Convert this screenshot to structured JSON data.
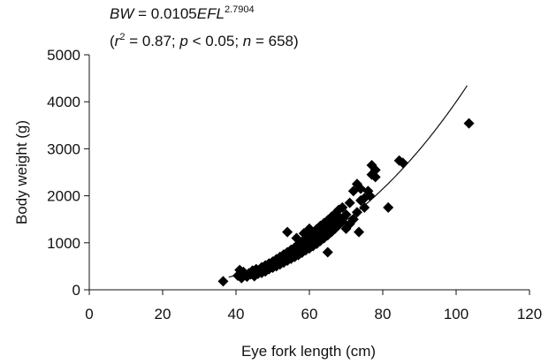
{
  "chart_data": {
    "type": "scatter",
    "xlabel": "Eye fork length (cm)",
    "ylabel": "Body weight (g)",
    "xlim": [
      0,
      120
    ],
    "ylim": [
      0,
      5000
    ],
    "xticks": [
      0,
      20,
      40,
      60,
      80,
      100,
      120
    ],
    "yticks": [
      0,
      1000,
      2000,
      3000,
      4000,
      5000
    ],
    "grid": false,
    "legend": "none",
    "annotation": {
      "equation": {
        "lhs_var": "BW",
        "equals": " = 0.0105",
        "rhs_var": "EFL",
        "exponent": "2.7904"
      },
      "stats": {
        "open": "(",
        "r_var": "r",
        "r_exp": "2",
        "r_val": " = 0.87; ",
        "p_var": "p",
        "p_val": " < 0.05; ",
        "n_var": "n",
        "n_val": " = 658)"
      }
    },
    "fit": {
      "a": 0.0105,
      "b": 2.7904,
      "x_range": [
        38,
        103
      ]
    },
    "series": [
      {
        "marker": "diamond",
        "color": "#000000",
        "points": [
          [
            36.5,
            180
          ],
          [
            40.5,
            300
          ],
          [
            41,
            420
          ],
          [
            41.5,
            250
          ],
          [
            42,
            380
          ],
          [
            42.5,
            310
          ],
          [
            43,
            280
          ],
          [
            43.5,
            350
          ],
          [
            44,
            330
          ],
          [
            44.5,
            410
          ],
          [
            45,
            290
          ],
          [
            45,
            370
          ],
          [
            45.5,
            440
          ],
          [
            46,
            340
          ],
          [
            46.5,
            400
          ],
          [
            47,
            360
          ],
          [
            47,
            480
          ],
          [
            47.5,
            430
          ],
          [
            48,
            390
          ],
          [
            48,
            520
          ],
          [
            48.5,
            470
          ],
          [
            49,
            440
          ],
          [
            49,
            560
          ],
          [
            49.5,
            500
          ],
          [
            50,
            470
          ],
          [
            50,
            600
          ],
          [
            50.5,
            540
          ],
          [
            51,
            500
          ],
          [
            51,
            650
          ],
          [
            51.5,
            580
          ],
          [
            52,
            540
          ],
          [
            52,
            700
          ],
          [
            52.5,
            620
          ],
          [
            53,
            580
          ],
          [
            53,
            750
          ],
          [
            53.5,
            660
          ],
          [
            54,
            1230
          ],
          [
            54,
            620
          ],
          [
            54,
            800
          ],
          [
            54.5,
            700
          ],
          [
            55,
            660
          ],
          [
            55,
            850
          ],
          [
            55.5,
            750
          ],
          [
            56,
            700
          ],
          [
            56,
            900
          ],
          [
            56.5,
            800
          ],
          [
            56.5,
            1100
          ],
          [
            57,
            740
          ],
          [
            57,
            960
          ],
          [
            57.5,
            850
          ],
          [
            58,
            790
          ],
          [
            58,
            1020
          ],
          [
            58.5,
            900
          ],
          [
            58.5,
            1200
          ],
          [
            59,
            840
          ],
          [
            59,
            1080
          ],
          [
            59.5,
            960
          ],
          [
            60,
            880
          ],
          [
            60,
            1150
          ],
          [
            60,
            1300
          ],
          [
            60.5,
            1020
          ],
          [
            61,
            930
          ],
          [
            61,
            1220
          ],
          [
            61.5,
            1080
          ],
          [
            62,
            980
          ],
          [
            62,
            1290
          ],
          [
            62.5,
            1140
          ],
          [
            63,
            1040
          ],
          [
            63,
            1360
          ],
          [
            63.5,
            1200
          ],
          [
            64,
            1100
          ],
          [
            64,
            1420
          ],
          [
            64.5,
            1260
          ],
          [
            65,
            1160
          ],
          [
            65,
            1480
          ],
          [
            65,
            800
          ],
          [
            65.5,
            1320
          ],
          [
            66,
            1230
          ],
          [
            66,
            1550
          ],
          [
            66.5,
            1380
          ],
          [
            67,
            1300
          ],
          [
            67,
            1620
          ],
          [
            67.5,
            1450
          ],
          [
            68,
            1700
          ],
          [
            68,
            1380
          ],
          [
            68.5,
            1520
          ],
          [
            69,
            1450
          ],
          [
            69,
            1750
          ],
          [
            70,
            1300
          ],
          [
            70,
            1600
          ],
          [
            71,
            1400
          ],
          [
            71,
            1850
          ],
          [
            72,
            2100
          ],
          [
            72,
            1500
          ],
          [
            73,
            2250
          ],
          [
            73,
            1650
          ],
          [
            73.5,
            1230
          ],
          [
            74,
            1900
          ],
          [
            74,
            2150
          ],
          [
            75,
            1950
          ],
          [
            75,
            1750
          ],
          [
            76,
            2100
          ],
          [
            76.5,
            2000
          ],
          [
            77,
            2650
          ],
          [
            77,
            2450
          ],
          [
            78,
            2400
          ],
          [
            78,
            2550
          ],
          [
            81.5,
            1750
          ],
          [
            84.5,
            2750
          ],
          [
            85.5,
            2700
          ],
          [
            103.5,
            3540
          ]
        ]
      }
    ]
  }
}
